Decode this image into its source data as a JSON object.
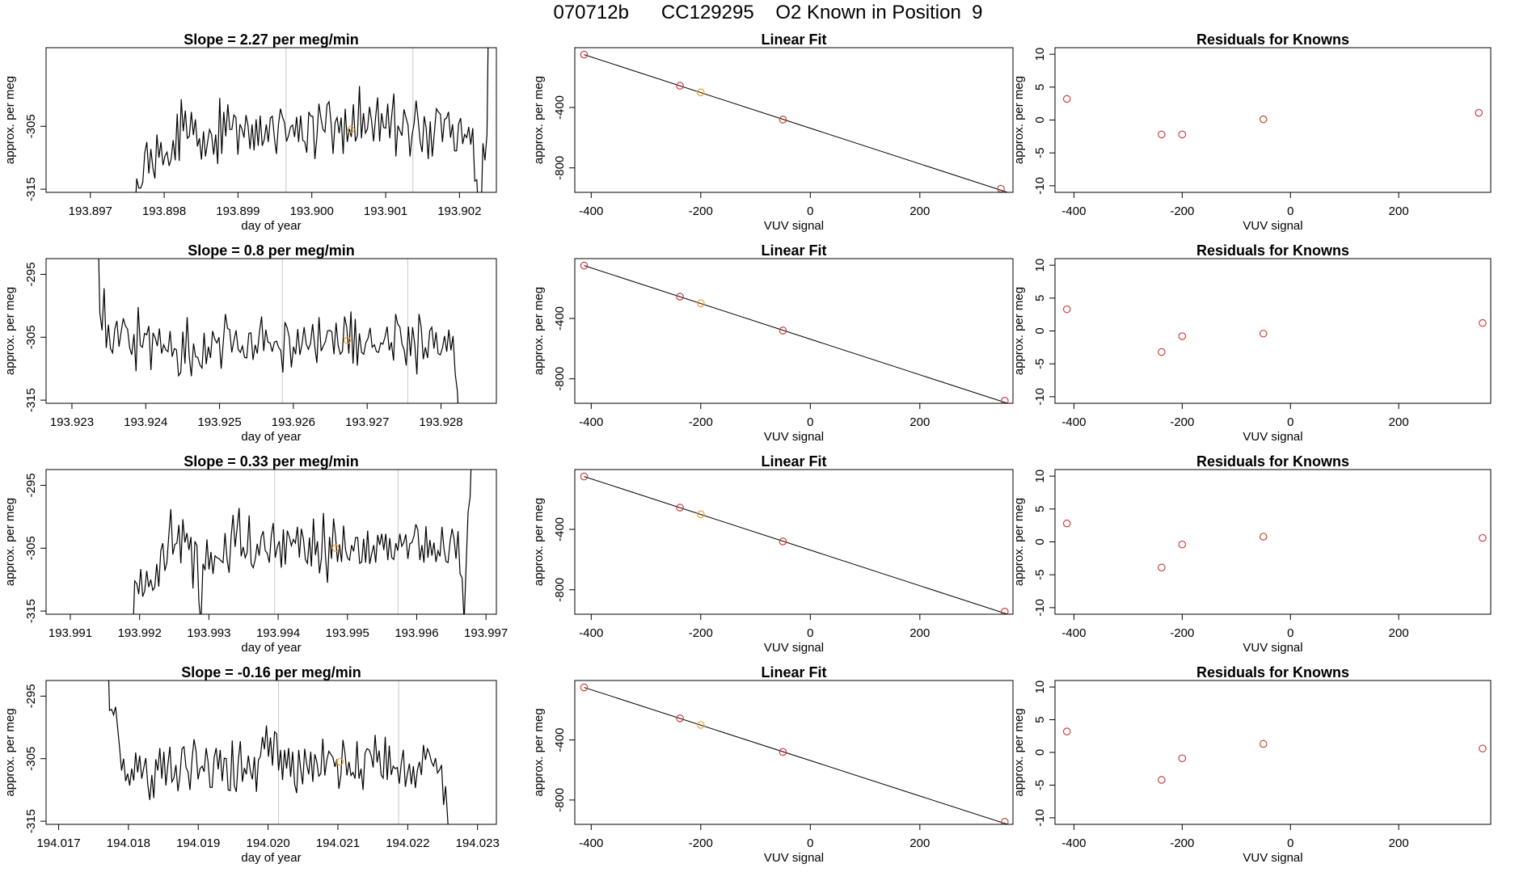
{
  "page_title": "070712b      CC129295    O2 Known in Position  9",
  "colors": {
    "trace": "#000000",
    "known_point": "#cd3f3f",
    "highlight_point": "#f0a030",
    "marker_line": "#c8c8c8"
  },
  "chart_data": [
    {
      "type": "line",
      "title": "Slope =  2.27  per meg/min",
      "xlabel": "day of year",
      "ylabel": "approx. per meg",
      "xlim": [
        193.8964,
        193.9025
      ],
      "ylim": [
        -315.5,
        -292.5
      ],
      "xticks": [
        "193.897",
        "193.898",
        "193.899",
        "193.900",
        "193.901",
        "193.902"
      ],
      "yticks": [
        "-305",
        "-315"
      ],
      "vlines": [
        193.89965,
        193.90137
      ],
      "x_start": 193.8976,
      "x_end": 193.9024,
      "values": [
        -320,
        -313.3,
        -314.8,
        -314.8,
        -313.9,
        -309.2,
        -307.5,
        -312.5,
        -308.6,
        -311.6,
        -313.3,
        -306.3,
        -310,
        -307.5,
        -311.2,
        -309.7,
        -309.1,
        -311.3,
        -310.2,
        -307.2,
        -310.4,
        -303,
        -310.5,
        -300.7,
        -305.8,
        -302.5,
        -306.9,
        -306.6,
        -302.7,
        -306.4,
        -303.9,
        -308.2,
        -306.9,
        -310.3,
        -305.8,
        -309.8,
        -307.6,
        -305.5,
        -306.3,
        -309.5,
        -306.3,
        -311,
        -300.5,
        -309.4,
        -302.7,
        -306.6,
        -301.5,
        -305.5,
        -305.5,
        -303.2,
        -303.6,
        -309.5,
        -304.7,
        -305.4,
        -306.8,
        -303.2,
        -304.9,
        -308.6,
        -304.7,
        -308.8,
        -303.9,
        -308.1,
        -303.3,
        -308.1,
        -307.1,
        -304.7,
        -307.5,
        -303.7,
        -303.4,
        -306.8,
        -309.4,
        -304.8,
        -302.2,
        -303.5,
        -304.4,
        -307.4,
        -306.5,
        -305.1,
        -304.8,
        -306.7,
        -303.5,
        -307.5,
        -303.3,
        -307.2,
        -307.5,
        -309.2,
        -302.7,
        -303.4,
        -303.4,
        -310.2,
        -306.7,
        -301.4,
        -303.7,
        -305.5,
        -305.9,
        -301.6,
        -301.1,
        -304.4,
        -309.4,
        -304.4,
        -303.6,
        -306.1,
        -303.6,
        -309.4,
        -302.2,
        -307.5,
        -305.4,
        -306.7,
        -301.5,
        -307.4,
        -306.5,
        -298.6,
        -306.9,
        -302.9,
        -306.1,
        -305.4,
        -301.9,
        -304.1,
        -307.4,
        -303.6,
        -300.4,
        -307.4,
        -302.9,
        -305.2,
        -305.3,
        -301.4,
        -306.9,
        -303.1,
        -299.8,
        -309.8,
        -304.9,
        -305.7,
        -306.5,
        -302.3,
        -303.6,
        -304.8,
        -309.8,
        -306.4,
        -304.6,
        -300.9,
        -303.9,
        -307.4,
        -309.1,
        -303.4,
        -305.3,
        -310.2,
        -304.2,
        -309.8,
        -306.2,
        -302.2,
        -302.7,
        -303.1,
        -307.5,
        -303.9,
        -303.7,
        -302.7,
        -306.8,
        -304.7,
        -308.9,
        -308.9,
        -304.6,
        -303.7,
        -307.8,
        -306.3,
        -306.8,
        -305.1,
        -307.9,
        -305.3,
        -313.7,
        -313.5,
        -320,
        -320,
        -307.7,
        -310.4,
        -306.3,
        -280
      ],
      "highlight": {
        "x": 193.90053,
        "y": -305.5
      }
    },
    {
      "type": "scatter",
      "title": "Linear Fit",
      "xlabel": "VUV signal",
      "ylabel": "approx. per meg",
      "xlim": [
        -430,
        370
      ],
      "ylim": [
        -962,
        -4
      ],
      "xticks": [
        -400,
        -200,
        0,
        200
      ],
      "yticks": [
        -400,
        -800
      ],
      "line": {
        "x": [
          -413,
          360
        ],
        "y": [
          -50,
          -962
        ]
      },
      "points": {
        "x": [
          -413,
          -238,
          -200,
          -50,
          348
        ],
        "y": [
          -50,
          -256,
          -300,
          -480,
          -938
        ]
      },
      "highlight_index": 2
    },
    {
      "type": "scatter",
      "title": "Residuals for Knowns",
      "xlabel": "VUV signal",
      "ylabel": "approx. per meg",
      "xlim": [
        -435,
        370
      ],
      "ylim": [
        -11,
        11
      ],
      "xticks": [
        -400,
        -200,
        0,
        200
      ],
      "yticks": [
        10,
        5,
        0,
        -5,
        -10
      ],
      "points": {
        "x": [
          -413,
          -238,
          -200,
          -50,
          348
        ],
        "y": [
          3.2,
          -2.2,
          -2.2,
          0.1,
          1.1
        ]
      }
    },
    {
      "type": "line",
      "title": "Slope =  0.8  per meg/min",
      "xlabel": "day of year",
      "ylabel": "approx. per meg",
      "xlim": [
        193.92265,
        193.92875
      ],
      "ylim": [
        -315.5,
        -292.5
      ],
      "xticks": [
        "193.923",
        "193.924",
        "193.925",
        "193.926",
        "193.927",
        "193.928"
      ],
      "yticks": [
        "-295",
        "-305",
        "-315"
      ],
      "vlines": [
        193.92585,
        193.92755
      ],
      "x_start": 193.92335,
      "x_end": 193.92825,
      "values": [
        -285,
        -301.1,
        -303.9,
        -297.2,
        -306.7,
        -303,
        -306.8,
        -307.5,
        -303.7,
        -302.4,
        -306.5,
        -304.1,
        -302,
        -303.2,
        -303.7,
        -306.7,
        -307.8,
        -304.5,
        -310.4,
        -300.2,
        -306.3,
        -306.6,
        -304.4,
        -304.6,
        -303.2,
        -310.2,
        -304.3,
        -305.1,
        -306.4,
        -303.6,
        -307.6,
        -306.2,
        -307,
        -307.3,
        -304,
        -308.1,
        -306.8,
        -307,
        -311.1,
        -310.6,
        -304.1,
        -309.2,
        -301.8,
        -308.1,
        -311.2,
        -306,
        -308.1,
        -308.2,
        -309.4,
        -309.9,
        -304.3,
        -309.3,
        -306.5,
        -308.3,
        -304,
        -305.3,
        -305.9,
        -305,
        -310,
        -305.8,
        -301.3,
        -303.6,
        -303.8,
        -307.4,
        -305.5,
        -303.9,
        -306.9,
        -307.4,
        -306.4,
        -308.2,
        -308.3,
        -304.4,
        -304.3,
        -308.6,
        -306.2,
        -307.6,
        -304.2,
        -301.7,
        -307.2,
        -303.8,
        -305.8,
        -305.9,
        -307.3,
        -305.8,
        -305.6,
        -306.6,
        -307.1,
        -310.6,
        -302.6,
        -303.5,
        -305,
        -309.8,
        -306.5,
        -307.7,
        -303.7,
        -307.8,
        -306.1,
        -303.4,
        -306.1,
        -306.9,
        -306,
        -302.9,
        -306.5,
        -309.1,
        -301.8,
        -307.2,
        -306.4,
        -305.7,
        -304,
        -303.9,
        -304.1,
        -307.7,
        -302.7,
        -306.3,
        -307.7,
        -307.2,
        -301.7,
        -303.4,
        -307.6,
        -300.9,
        -309.2,
        -302.1,
        -309.5,
        -304.4,
        -307.4,
        -307.7,
        -305.9,
        -305.2,
        -303.5,
        -306.6,
        -306.2,
        -307.3,
        -307.4,
        -305.9,
        -306.1,
        -305,
        -303.3,
        -307.1,
        -305.8,
        -308.7,
        -301.3,
        -302.9,
        -303.4,
        -306.1,
        -307,
        -309.5,
        -303.3,
        -308,
        -303.4,
        -306.2,
        -310.9,
        -301.3,
        -303.4,
        -308.5,
        -306.6,
        -308.3,
        -304,
        -303.4,
        -306.8,
        -304.2,
        -307.6,
        -307.8,
        -306.7,
        -304.8,
        -307.3,
        -303.8,
        -307.1,
        -304.8,
        -310.8,
        -313.5,
        -320
      ],
      "highlight": {
        "x": 193.92673,
        "y": -305.5
      }
    },
    {
      "type": "scatter",
      "title": "Linear Fit",
      "xlabel": "VUV signal",
      "ylabel": "approx. per meg",
      "xlim": [
        -430,
        370
      ],
      "ylim": [
        -962,
        -4
      ],
      "xticks": [
        -400,
        -200,
        0,
        200
      ],
      "yticks": [
        -400,
        -800
      ],
      "line": {
        "x": [
          -413,
          360
        ],
        "y": [
          -50,
          -962
        ]
      },
      "points": {
        "x": [
          -413,
          -238,
          -200,
          -50,
          355
        ],
        "y": [
          -50,
          -256,
          -300,
          -480,
          -945
        ]
      },
      "highlight_index": 2
    },
    {
      "type": "scatter",
      "title": "Residuals for Knowns",
      "xlabel": "VUV signal",
      "ylabel": "approx. per meg",
      "xlim": [
        -435,
        370
      ],
      "ylim": [
        -11,
        11
      ],
      "xticks": [
        -400,
        -200,
        0,
        200
      ],
      "yticks": [
        10,
        5,
        0,
        -5,
        -10
      ],
      "points": {
        "x": [
          -413,
          -238,
          -200,
          -50,
          355
        ],
        "y": [
          3.3,
          -3.2,
          -0.8,
          -0.4,
          1.2
        ]
      }
    },
    {
      "type": "line",
      "title": "Slope =  0.33  per meg/min",
      "xlabel": "day of year",
      "ylabel": "approx. per meg",
      "xlim": [
        193.99065,
        193.99715
      ],
      "ylim": [
        -315.5,
        -292.5
      ],
      "xticks": [
        "193.991",
        "193.992",
        "193.993",
        "193.994",
        "193.995",
        "193.996",
        "193.997"
      ],
      "yticks": [
        "-295",
        "-305",
        "-315"
      ],
      "vlines": [
        193.99395,
        193.99573
      ],
      "x_start": 193.9919,
      "x_end": 193.9968,
      "values": [
        -320,
        -310.2,
        -310.6,
        -312.3,
        -308.3,
        -312.7,
        -311.8,
        -308.6,
        -311.2,
        -310,
        -311.7,
        -311.2,
        -307.5,
        -311.1,
        -305.4,
        -304.2,
        -308.6,
        -307.3,
        -303,
        -298.8,
        -306,
        -304.4,
        -304.2,
        -301.3,
        -307.4,
        -300.4,
        -304.1,
        -302.6,
        -305.3,
        -303.2,
        -311.4,
        -303.9,
        -304.6,
        -313.7,
        -316.8,
        -307.5,
        -308.5,
        -303.6,
        -308.4,
        -305.6,
        -309.1,
        -306.2,
        -306.5,
        -306.7,
        -307,
        -307.3,
        -302.6,
        -306.8,
        -308.9,
        -303.2,
        -299.7,
        -304.8,
        -301.8,
        -298.6,
        -306.3,
        -304.8,
        -306.5,
        -305.7,
        -299.8,
        -307.5,
        -308.1,
        -306.8,
        -304.3,
        -306.2,
        -303.2,
        -302.3,
        -305.4,
        -305.8,
        -307.3,
        -303,
        -301,
        -306.5,
        -304.8,
        -303.9,
        -308.1,
        -302,
        -307.6,
        -302.2,
        -303.2,
        -304.6,
        -303.6,
        -304.2,
        -301.6,
        -306.5,
        -301.9,
        -303.5,
        -306.8,
        -307.4,
        -303.3,
        -307.9,
        -300.3,
        -306.1,
        -303.9,
        -309,
        -306.5,
        -299.4,
        -306.3,
        -310.5,
        -303.2,
        -306.7,
        -300.3,
        -303.2,
        -307.2,
        -304.4,
        -307.2,
        -301.4,
        -305.3,
        -306.6,
        -306.9,
        -304.5,
        -305.5,
        -303.3,
        -303.3,
        -307.4,
        -307.2,
        -303.5,
        -307.3,
        -302.2,
        -307.5,
        -305.9,
        -304.5,
        -307.3,
        -302.9,
        -304.5,
        -302.7,
        -305.3,
        -302.7,
        -306.9,
        -303.4,
        -306.5,
        -306.8,
        -304.2,
        -305.4,
        -302.7,
        -304.7,
        -304.1,
        -302.8,
        -306.7,
        -304.3,
        -304.1,
        -303.1,
        -301.2,
        -302.1,
        -306.9,
        -304.5,
        -307.3,
        -301.5,
        -306.5,
        -303.7,
        -306.2,
        -304.1,
        -307.2,
        -305.4,
        -306.3,
        -301.6,
        -305.1,
        -307.1,
        -307.3,
        -304,
        -301.9,
        -303.5,
        -306.7,
        -302.3,
        -309.1,
        -309.7,
        -316.8,
        -307.7,
        -299.3,
        -296.9,
        -287
      ],
      "highlight": {
        "x": 193.99483,
        "y": -305
      }
    },
    {
      "type": "scatter",
      "title": "Linear Fit",
      "xlabel": "VUV signal",
      "ylabel": "approx. per meg",
      "xlim": [
        -430,
        370
      ],
      "ylim": [
        -962,
        -4
      ],
      "xticks": [
        -400,
        -200,
        0,
        200
      ],
      "yticks": [
        -400,
        -800
      ],
      "line": {
        "x": [
          -413,
          360
        ],
        "y": [
          -50,
          -962
        ]
      },
      "points": {
        "x": [
          -413,
          -238,
          -200,
          -50,
          355
        ],
        "y": [
          -50,
          -256,
          -300,
          -480,
          -945
        ]
      },
      "highlight_index": 2
    },
    {
      "type": "scatter",
      "title": "Residuals for Knowns",
      "xlabel": "VUV signal",
      "ylabel": "approx. per meg",
      "xlim": [
        -435,
        370
      ],
      "ylim": [
        -11,
        11
      ],
      "xticks": [
        -400,
        -200,
        0,
        200
      ],
      "yticks": [
        10,
        5,
        0,
        -5,
        -10
      ],
      "points": {
        "x": [
          -413,
          -238,
          -200,
          -50,
          355
        ],
        "y": [
          2.8,
          -3.9,
          -0.4,
          0.8,
          0.6
        ]
      }
    },
    {
      "type": "line",
      "title": "Slope =  -0.16  per meg/min",
      "xlabel": "day of year",
      "ylabel": "approx. per meg",
      "xlim": [
        194.01682,
        194.02327
      ],
      "ylim": [
        -315.5,
        -292.5
      ],
      "xticks": [
        "194.017",
        "194.018",
        "194.019",
        "194.020",
        "194.021",
        "194.022",
        "194.023"
      ],
      "yticks": [
        "-295",
        "-305",
        "-315"
      ],
      "vlines": [
        194.02015,
        194.02187
      ],
      "x_start": 194.0177,
      "x_end": 194.0226,
      "values": [
        -285,
        -297.3,
        -297.1,
        -298,
        -296.7,
        -299.9,
        -303.2,
        -306.9,
        -305,
        -308.6,
        -307.4,
        -309.3,
        -306.6,
        -308.5,
        -304,
        -307.2,
        -304.5,
        -308.2,
        -306.5,
        -304.9,
        -309.1,
        -311.6,
        -307.6,
        -311.3,
        -305.1,
        -306.9,
        -303.3,
        -308.2,
        -303.9,
        -309.3,
        -305.9,
        -303.1,
        -308.7,
        -308.1,
        -306,
        -310.2,
        -307.7,
        -303.4,
        -303.1,
        -306.4,
        -307.1,
        -310,
        -305.2,
        -301.9,
        -303.8,
        -308.3,
        -306.6,
        -306.2,
        -307.1,
        -303.3,
        -305.5,
        -309.6,
        -309.6,
        -304.8,
        -303.3,
        -306.7,
        -303.6,
        -308.6,
        -304.9,
        -305,
        -310,
        -310.1,
        -302.1,
        -309.3,
        -310.3,
        -305.2,
        -302.2,
        -308.7,
        -306.5,
        -307.5,
        -304.5,
        -307,
        -308.3,
        -304.7,
        -310.3,
        -305.2,
        -304.6,
        -301.5,
        -303.5,
        -299.7,
        -304.7,
        -301.6,
        -306.1,
        -300.7,
        -301,
        -306.9,
        -303.6,
        -308.4,
        -303.6,
        -306.6,
        -303.3,
        -307.9,
        -303.9,
        -309.1,
        -310.5,
        -303.6,
        -306.6,
        -309.1,
        -303.4,
        -305.9,
        -307.5,
        -303.9,
        -308.7,
        -304.3,
        -305.5,
        -307.8,
        -307.4,
        -301.8,
        -307.7,
        -305.2,
        -303.8,
        -304.3,
        -304.8,
        -306.3,
        -305.1,
        -309.8,
        -307.6,
        -302,
        -304.1,
        -307.7,
        -305.5,
        -307.7,
        -307.2,
        -308.2,
        -302.2,
        -308.2,
        -306.6,
        -310,
        -304.1,
        -303.4,
        -303.6,
        -304.5,
        -306.4,
        -301.2,
        -305.6,
        -303.7,
        -307.6,
        -308.1,
        -301.5,
        -308.4,
        -302.9,
        -307.6,
        -306.2,
        -306.6,
        -306.4,
        -309,
        -305.7,
        -303.6,
        -309.5,
        -307.5,
        -305.8,
        -309.1,
        -306.2,
        -309.7,
        -306.8,
        -305.5,
        -307.6,
        -302.8,
        -305.2,
        -303.4,
        -304.2,
        -305.5,
        -306.2,
        -304.9,
        -307.3,
        -306.8,
        -306,
        -312.4,
        -309.4,
        -314.5,
        -320
      ],
      "highlight": {
        "x": 194.02103,
        "y": -305.5
      }
    },
    {
      "type": "scatter",
      "title": "Linear Fit",
      "xlabel": "VUV signal",
      "ylabel": "approx. per meg",
      "xlim": [
        -430,
        370
      ],
      "ylim": [
        -962,
        -4
      ],
      "xticks": [
        -400,
        -200,
        0,
        200
      ],
      "yticks": [
        -400,
        -800
      ],
      "line": {
        "x": [
          -413,
          360
        ],
        "y": [
          -50,
          -962
        ]
      },
      "points": {
        "x": [
          -413,
          -238,
          -200,
          -50,
          355
        ],
        "y": [
          -50,
          -256,
          -300,
          -480,
          -945
        ]
      },
      "highlight_index": 2
    },
    {
      "type": "scatter",
      "title": "Residuals for Knowns",
      "xlabel": "VUV signal",
      "ylabel": "approx. per meg",
      "xlim": [
        -435,
        370
      ],
      "ylim": [
        -11,
        11
      ],
      "xticks": [
        -400,
        -200,
        0,
        200
      ],
      "yticks": [
        10,
        5,
        0,
        -5,
        -10
      ],
      "points": {
        "x": [
          -413,
          -238,
          -200,
          -50,
          355
        ],
        "y": [
          3.2,
          -4.2,
          -0.9,
          1.3,
          0.6
        ]
      }
    }
  ]
}
